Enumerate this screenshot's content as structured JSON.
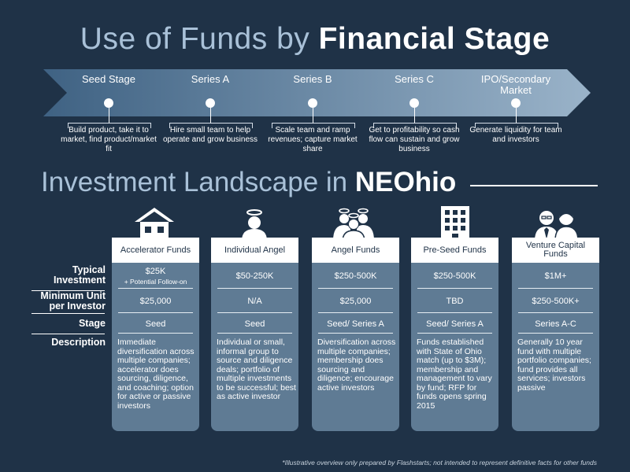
{
  "title1": {
    "light": "Use of Funds by ",
    "bold": "Financial Stage"
  },
  "stages": [
    {
      "label": "Seed Stage",
      "desc": "Build product, take it to market, find product/market fit"
    },
    {
      "label": "Series A",
      "desc": "Hire small team to help operate and grow business"
    },
    {
      "label": "Series B",
      "desc": "Scale team and ramp revenues; capture market share"
    },
    {
      "label": "Series C",
      "desc": "Get to profitability so cash flow can sustain and grow business"
    },
    {
      "label": "IPO/Secondary Market",
      "desc": "Generate liquidity for team and investors"
    }
  ],
  "title2": {
    "light": "Investment Landscape in ",
    "bold": "NEOhio"
  },
  "row_labels": {
    "investment": "Typical Investment",
    "unit": "Minimum Unit per Investor",
    "stage": "Stage",
    "description": "Description"
  },
  "funds": [
    {
      "name": "Accelerator Funds",
      "icon": "house-icon",
      "investment": "$25K",
      "investment_note": "+ Potential Follow-on",
      "unit": "$25,000",
      "stage": "Seed",
      "description": "Immediate diversification across multiple companies; accelerator does sourcing, diligence, and coaching; option for active or passive investors"
    },
    {
      "name": "Individual Angel",
      "icon": "angel-icon",
      "investment": "$50-250K",
      "investment_note": "",
      "unit": "N/A",
      "stage": "Seed",
      "description": "Individual or small, informal group to source and diligence deals; portfolio of multiple investments to be successful; best as active investor"
    },
    {
      "name": "Angel Funds",
      "icon": "angel-group-icon",
      "investment": "$250-500K",
      "investment_note": "",
      "unit": "$25,000",
      "stage": "Seed/ Series A",
      "description": "Diversification across multiple companies; membership does sourcing and diligence; encourage active investors"
    },
    {
      "name": "Pre-Seed Funds",
      "icon": "building-icon",
      "investment": "$250-500K",
      "investment_note": "",
      "unit": "TBD",
      "stage": "Seed/ Series A",
      "description": "Funds established with State of Ohio match (up to $3M); membership and management to vary by fund; RFP for funds opens spring 2015"
    },
    {
      "name": "Venture Capital Funds",
      "icon": "business-people-icon",
      "investment": "$1M+",
      "investment_note": "",
      "unit": "$250-500K+",
      "stage": "Series A-C",
      "description": "Generally 10 year fund with multiple portfolio companies; fund provides all services; investors passive"
    }
  ],
  "footnote": "*Illustrative overview only prepared by Flashstarts; not intended to represent definitive facts for other funds",
  "colors": {
    "background": "#1f3247",
    "column": "#5f7b94",
    "title_light": "#a9c1d8",
    "arrow_start": "#3f6283",
    "arrow_end": "#9ab3c9"
  }
}
